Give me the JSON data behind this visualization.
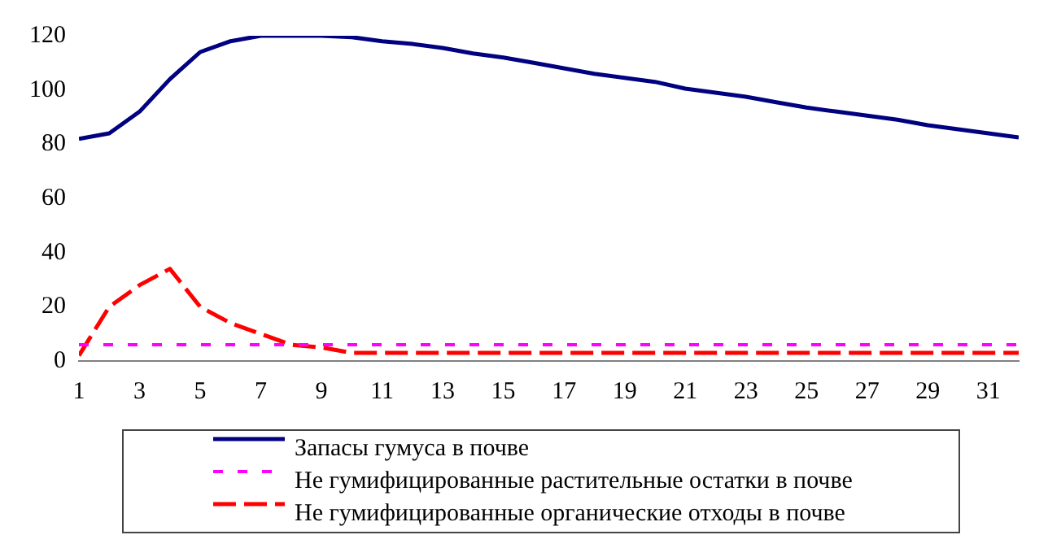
{
  "chart_data": {
    "type": "line",
    "x": [
      1,
      2,
      3,
      4,
      5,
      6,
      7,
      8,
      9,
      10,
      11,
      12,
      13,
      14,
      15,
      16,
      17,
      18,
      19,
      20,
      21,
      22,
      23,
      24,
      25,
      26,
      27,
      28,
      29,
      30,
      31,
      32
    ],
    "xlim": [
      1,
      32
    ],
    "xticks": [
      1,
      3,
      5,
      7,
      9,
      11,
      13,
      15,
      17,
      19,
      21,
      23,
      25,
      27,
      29,
      31
    ],
    "series": [
      {
        "name": "Запасы гумуса в почве",
        "color": "#000080",
        "line_style": "solid",
        "values": [
          82,
          84,
          92,
          104,
          114,
          118,
          120,
          120,
          120,
          119.5,
          118,
          117,
          115.5,
          113.5,
          112,
          110,
          108,
          106,
          104.5,
          103,
          100.5,
          99,
          97.5,
          95.5,
          93.5,
          92,
          90.5,
          89,
          87,
          85.5,
          84,
          82.5
        ]
      },
      {
        "name": "Не гумифицированные растительные остатки в почве",
        "color": "#ff00ff",
        "line_style": "dotted",
        "values": [
          6,
          6,
          6,
          6,
          6,
          6,
          6,
          6,
          6,
          6,
          6,
          6,
          6,
          6,
          6,
          6,
          6,
          6,
          6,
          6,
          6,
          6,
          6,
          6,
          6,
          6,
          6,
          6,
          6,
          6,
          6,
          6
        ]
      },
      {
        "name": "Не гумифицированные органические отходы в почве",
        "color": "#ff0000",
        "line_style": "dashed",
        "values": [
          2,
          20,
          28,
          34,
          20,
          14,
          10,
          6,
          5,
          3,
          3,
          3,
          3,
          3,
          3,
          3,
          3,
          3,
          3,
          3,
          3,
          3,
          3,
          3,
          3,
          3,
          3,
          3,
          3,
          3,
          3,
          3
        ]
      }
    ],
    "ylim": [
      0,
      120
    ],
    "yticks": [
      0,
      20,
      40,
      60,
      80,
      100,
      120
    ],
    "grid": false,
    "legend": "bottom",
    "marker": "none"
  }
}
